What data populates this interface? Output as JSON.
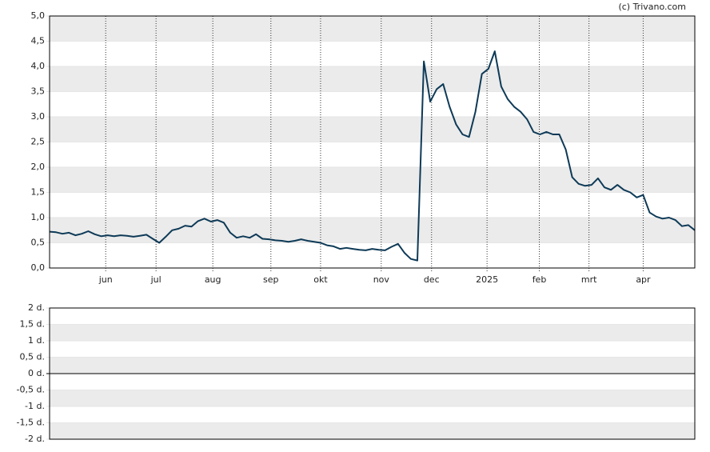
{
  "chart_data": [
    {
      "type": "line",
      "credit": "(c) Trivano.com",
      "xlim": [
        0,
        100
      ],
      "xticks": [
        {
          "value": 8.7,
          "label": "jun"
        },
        {
          "value": 16.5,
          "label": "jul"
        },
        {
          "value": 25.3,
          "label": "aug"
        },
        {
          "value": 34.3,
          "label": "sep"
        },
        {
          "value": 42.0,
          "label": "okt"
        },
        {
          "value": 51.4,
          "label": "nov"
        },
        {
          "value": 59.2,
          "label": "dec"
        },
        {
          "value": 67.8,
          "label": "2025"
        },
        {
          "value": 75.9,
          "label": "feb"
        },
        {
          "value": 83.6,
          "label": "mrt"
        },
        {
          "value": 92.0,
          "label": "apr"
        }
      ],
      "ylim": [
        0,
        5
      ],
      "yticks": [
        {
          "value": 0,
          "label": "0,0"
        },
        {
          "value": 0.5,
          "label": "0,5"
        },
        {
          "value": 1,
          "label": "1,0"
        },
        {
          "value": 1.5,
          "label": "1,5"
        },
        {
          "value": 2,
          "label": "2,0"
        },
        {
          "value": 2.5,
          "label": "2,5"
        },
        {
          "value": 3,
          "label": "3,0"
        },
        {
          "value": 3.5,
          "label": "3,5"
        },
        {
          "value": 4,
          "label": "4,0"
        },
        {
          "value": 4.5,
          "label": "4,5"
        },
        {
          "value": 5,
          "label": "5,0"
        }
      ],
      "series": [
        {
          "color": "#0e3a57",
          "values": [
            0.72,
            0.71,
            0.68,
            0.7,
            0.65,
            0.68,
            0.73,
            0.67,
            0.63,
            0.65,
            0.63,
            0.65,
            0.64,
            0.62,
            0.64,
            0.66,
            0.58,
            0.5,
            0.62,
            0.75,
            0.78,
            0.84,
            0.82,
            0.93,
            0.98,
            0.92,
            0.95,
            0.9,
            0.7,
            0.6,
            0.63,
            0.6,
            0.67,
            0.58,
            0.57,
            0.55,
            0.54,
            0.52,
            0.54,
            0.57,
            0.54,
            0.52,
            0.5,
            0.45,
            0.43,
            0.38,
            0.4,
            0.38,
            0.36,
            0.35,
            0.38,
            0.36,
            0.35,
            0.42,
            0.48,
            0.3,
            0.18,
            0.15,
            4.1,
            3.3,
            3.55,
            3.65,
            3.2,
            2.85,
            2.65,
            2.6,
            3.1,
            3.85,
            3.95,
            4.3,
            3.6,
            3.35,
            3.2,
            3.1,
            2.95,
            2.7,
            2.65,
            2.7,
            2.65,
            2.65,
            2.35,
            1.8,
            1.67,
            1.63,
            1.65,
            1.78,
            1.6,
            1.55,
            1.65,
            1.55,
            1.5,
            1.4,
            1.45,
            1.1,
            1.02,
            0.98,
            1.0,
            0.95,
            0.83,
            0.85,
            0.75
          ]
        }
      ]
    },
    {
      "type": "line",
      "ylim": [
        -2,
        2
      ],
      "yticks": [
        {
          "value": -2,
          "label": "-2 d."
        },
        {
          "value": -1.5,
          "label": "-1,5 d."
        },
        {
          "value": -1,
          "label": "-1 d."
        },
        {
          "value": -0.5,
          "label": "-0,5 d."
        },
        {
          "value": 0,
          "label": "0 d."
        },
        {
          "value": 0.5,
          "label": "0,5 d."
        },
        {
          "value": 1,
          "label": "1 d."
        },
        {
          "value": 1.5,
          "label": "1,5 d."
        },
        {
          "value": 2,
          "label": "2 d."
        }
      ],
      "series": []
    }
  ]
}
